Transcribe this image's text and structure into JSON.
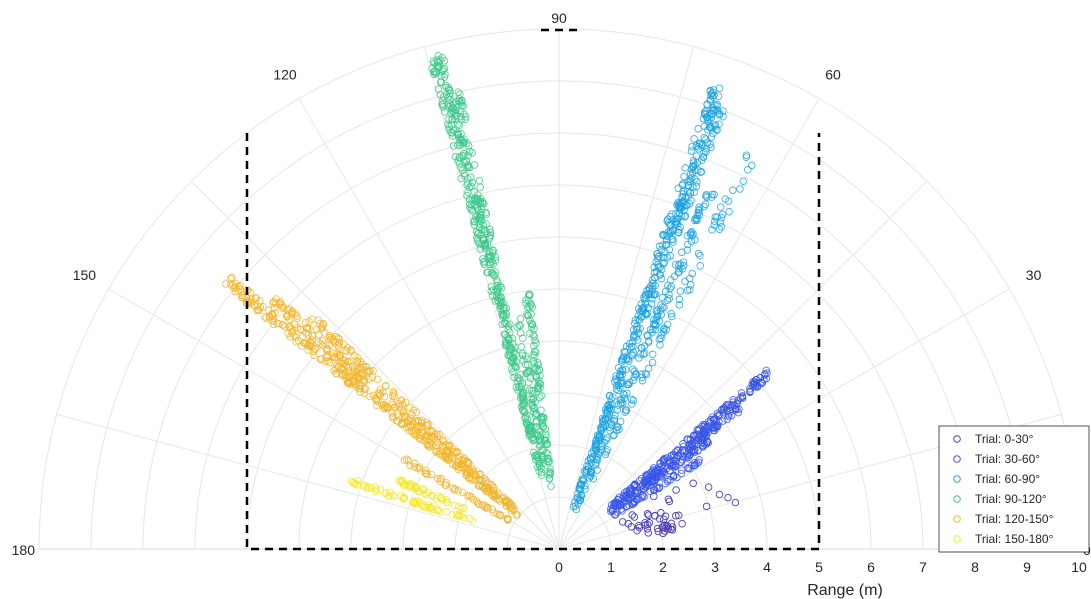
{
  "chart_data": {
    "type": "scatter",
    "subtype": "polar-half",
    "xlabel": "Range (m)",
    "rlim": [
      0,
      10
    ],
    "r_ticks": [
      "0",
      "1",
      "2",
      "3",
      "4",
      "5",
      "6",
      "7",
      "8",
      "9",
      "10"
    ],
    "theta_ticks": [
      {
        "deg": 0,
        "label": "0"
      },
      {
        "deg": 30,
        "label": "30"
      },
      {
        "deg": 60,
        "label": "60"
      },
      {
        "deg": 90,
        "label": "90"
      },
      {
        "deg": 120,
        "label": "120"
      },
      {
        "deg": 150,
        "label": "150"
      },
      {
        "deg": 180,
        "label": "180"
      }
    ],
    "grid": true,
    "legend_position": "bottom-right",
    "boundary": {
      "style": "dashed",
      "color": "#000000",
      "x_range_m": [
        -6,
        5
      ],
      "y_max_m": 8
    },
    "series": [
      {
        "name": "Trial: 0-30°",
        "color": "#4b3fb8",
        "theta_deg": [
          0,
          30
        ],
        "clusters": [
          {
            "center": [
              1.8,
              0.5
            ],
            "spread": [
              0.6,
              0.2
            ],
            "n": 40
          },
          {
            "center": [
              2.6,
              0.9
            ],
            "spread": [
              0.8,
              0.4
            ],
            "n": 10
          }
        ]
      },
      {
        "name": "Trial: 30-60°",
        "color": "#3a56e8",
        "theta_deg": [
          30,
          60
        ],
        "lines": [
          {
            "r": [
              1.2,
              4.4
            ],
            "theta_deg": 38,
            "n": 120
          },
          {
            "r": [
              1.2,
              3.6
            ],
            "theta_deg": 36,
            "n": 90
          },
          {
            "r": [
              1.3,
              5.3
            ],
            "theta_deg": 40,
            "n": 140
          },
          {
            "r": [
              1.2,
              3.2
            ],
            "theta_deg": 32,
            "n": 50
          }
        ]
      },
      {
        "name": "Trial: 60-90°",
        "color": "#1fa3de",
        "theta_deg": [
          60,
          90
        ],
        "lines": [
          {
            "r": [
              0.8,
              9.5
            ],
            "theta_deg": 71,
            "n": 220
          },
          {
            "r": [
              0.8,
              9.0
            ],
            "theta_deg": 70,
            "n": 180
          },
          {
            "r": [
              0.8,
              7.5
            ],
            "theta_deg": 67,
            "n": 140
          },
          {
            "r": [
              1.5,
              8.5
            ],
            "theta_deg": 64,
            "n": 70
          }
        ]
      },
      {
        "name": "Trial: 90-120°",
        "color": "#3ec88a",
        "theta_deg": [
          90,
          120
        ],
        "lines": [
          {
            "r": [
              1.4,
              9.8
            ],
            "theta_deg": 104,
            "n": 240
          },
          {
            "r": [
              1.4,
              9.0
            ],
            "theta_deg": 103,
            "n": 180
          },
          {
            "r": [
              1.2,
              5.0
            ],
            "theta_deg": 97,
            "n": 90
          },
          {
            "r": [
              1.5,
              4.5
            ],
            "theta_deg": 100,
            "n": 60
          }
        ]
      },
      {
        "name": "Trial: 120-150°",
        "color": "#f0b630",
        "theta_deg": [
          120,
          150
        ],
        "lines": [
          {
            "r": [
              1.0,
              8.2
            ],
            "theta_deg": 141,
            "n": 240
          },
          {
            "r": [
              1.1,
              7.3
            ],
            "theta_deg": 139,
            "n": 180
          },
          {
            "r": [
              1.2,
              6.5
            ],
            "theta_deg": 137,
            "n": 120
          },
          {
            "r": [
              1.0,
              3.5
            ],
            "theta_deg": 150,
            "n": 50
          }
        ]
      },
      {
        "name": "Trial: 150-180°",
        "color": "#f5e92c",
        "theta_deg": [
          150,
          180
        ],
        "lines": [
          {
            "r": [
              1.7,
              4.2
            ],
            "theta_deg": 162,
            "n": 60
          },
          {
            "r": [
              1.9,
              3.4
            ],
            "theta_deg": 157,
            "n": 40
          }
        ]
      }
    ]
  }
}
